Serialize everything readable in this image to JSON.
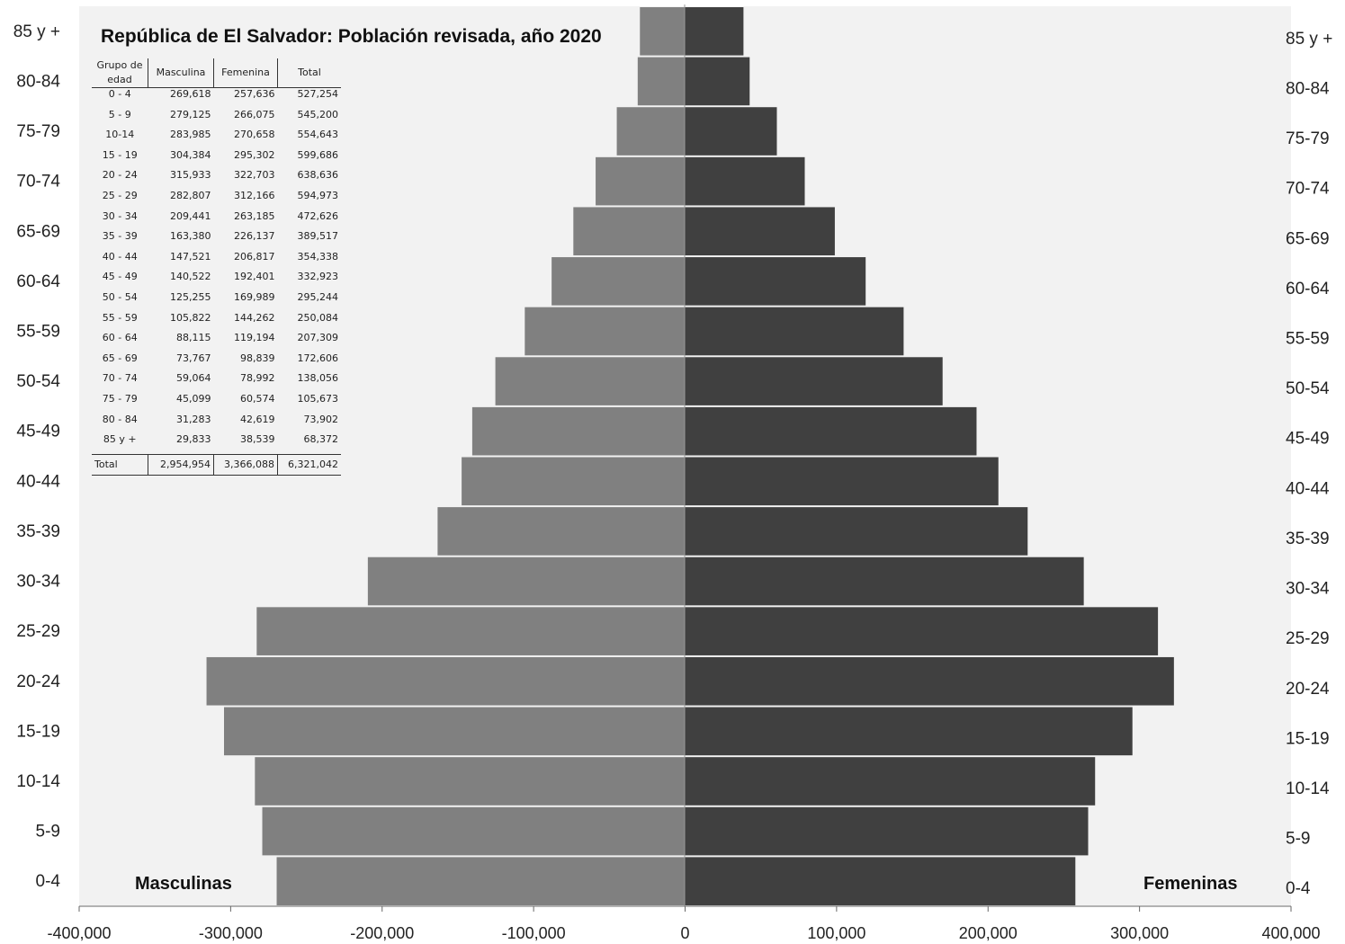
{
  "chart_data": {
    "type": "bar",
    "orientation": "horizontal",
    "title": "República de El Salvador: Población revisada, año 2020",
    "categories": [
      "0-4",
      "5-9",
      "10-14",
      "15-19",
      "20-24",
      "25-29",
      "30-34",
      "35-39",
      "40-44",
      "45-49",
      "50-54",
      "55-59",
      "60-64",
      "65-69",
      "70-74",
      "75-79",
      "80-84",
      "85 y +"
    ],
    "series": [
      {
        "name": "Masculinas",
        "color": "#808080",
        "values": [
          269618,
          279125,
          283985,
          304384,
          315933,
          282807,
          209441,
          163380,
          147521,
          140522,
          125255,
          105822,
          88115,
          73767,
          59064,
          45099,
          31283,
          29833
        ]
      },
      {
        "name": "Femeninas",
        "color": "#404040",
        "values": [
          257636,
          266075,
          270658,
          295302,
          322703,
          312166,
          263185,
          226137,
          206817,
          192401,
          169989,
          144262,
          119194,
          98839,
          78992,
          60574,
          42619,
          38539
        ]
      }
    ],
    "xlim": [
      -400000,
      400000
    ],
    "xticks": [
      "-400,000",
      "-300,000",
      "-200,000",
      "-100,000",
      "0",
      "100,000",
      "200,000",
      "300,000",
      "400,000"
    ],
    "plot_background": "#f2f2f2",
    "grid": false
  },
  "table": {
    "headers": [
      "Grupo de edad",
      "Masculina",
      "Femenina",
      "Total"
    ],
    "rows": [
      [
        "0 - 4",
        "269,618",
        "257,636",
        "527,254"
      ],
      [
        "5 - 9",
        "279,125",
        "266,075",
        "545,200"
      ],
      [
        "10-14",
        "283,985",
        "270,658",
        "554,643"
      ],
      [
        "15 - 19",
        "304,384",
        "295,302",
        "599,686"
      ],
      [
        "20 - 24",
        "315,933",
        "322,703",
        "638,636"
      ],
      [
        "25 - 29",
        "282,807",
        "312,166",
        "594,973"
      ],
      [
        "30 - 34",
        "209,441",
        "263,185",
        "472,626"
      ],
      [
        "35 - 39",
        "163,380",
        "226,137",
        "389,517"
      ],
      [
        "40 - 44",
        "147,521",
        "206,817",
        "354,338"
      ],
      [
        "45 - 49",
        "140,522",
        "192,401",
        "332,923"
      ],
      [
        "50 - 54",
        "125,255",
        "169,989",
        "295,244"
      ],
      [
        "55 - 59",
        "105,822",
        "144,262",
        "250,084"
      ],
      [
        "60 - 64",
        "88,115",
        "119,194",
        "207,309"
      ],
      [
        "65 - 69",
        "73,767",
        "98,839",
        "172,606"
      ],
      [
        "70 - 74",
        "59,064",
        "78,992",
        "138,056"
      ],
      [
        "75 - 79",
        "45,099",
        "60,574",
        "105,673"
      ],
      [
        "80 - 84",
        "31,283",
        "42,619",
        "73,902"
      ],
      [
        "85 y +",
        "29,833",
        "38,539",
        "68,372"
      ]
    ],
    "total": [
      "Total",
      "2,954,954",
      "3,366,088",
      "6,321,042"
    ]
  }
}
